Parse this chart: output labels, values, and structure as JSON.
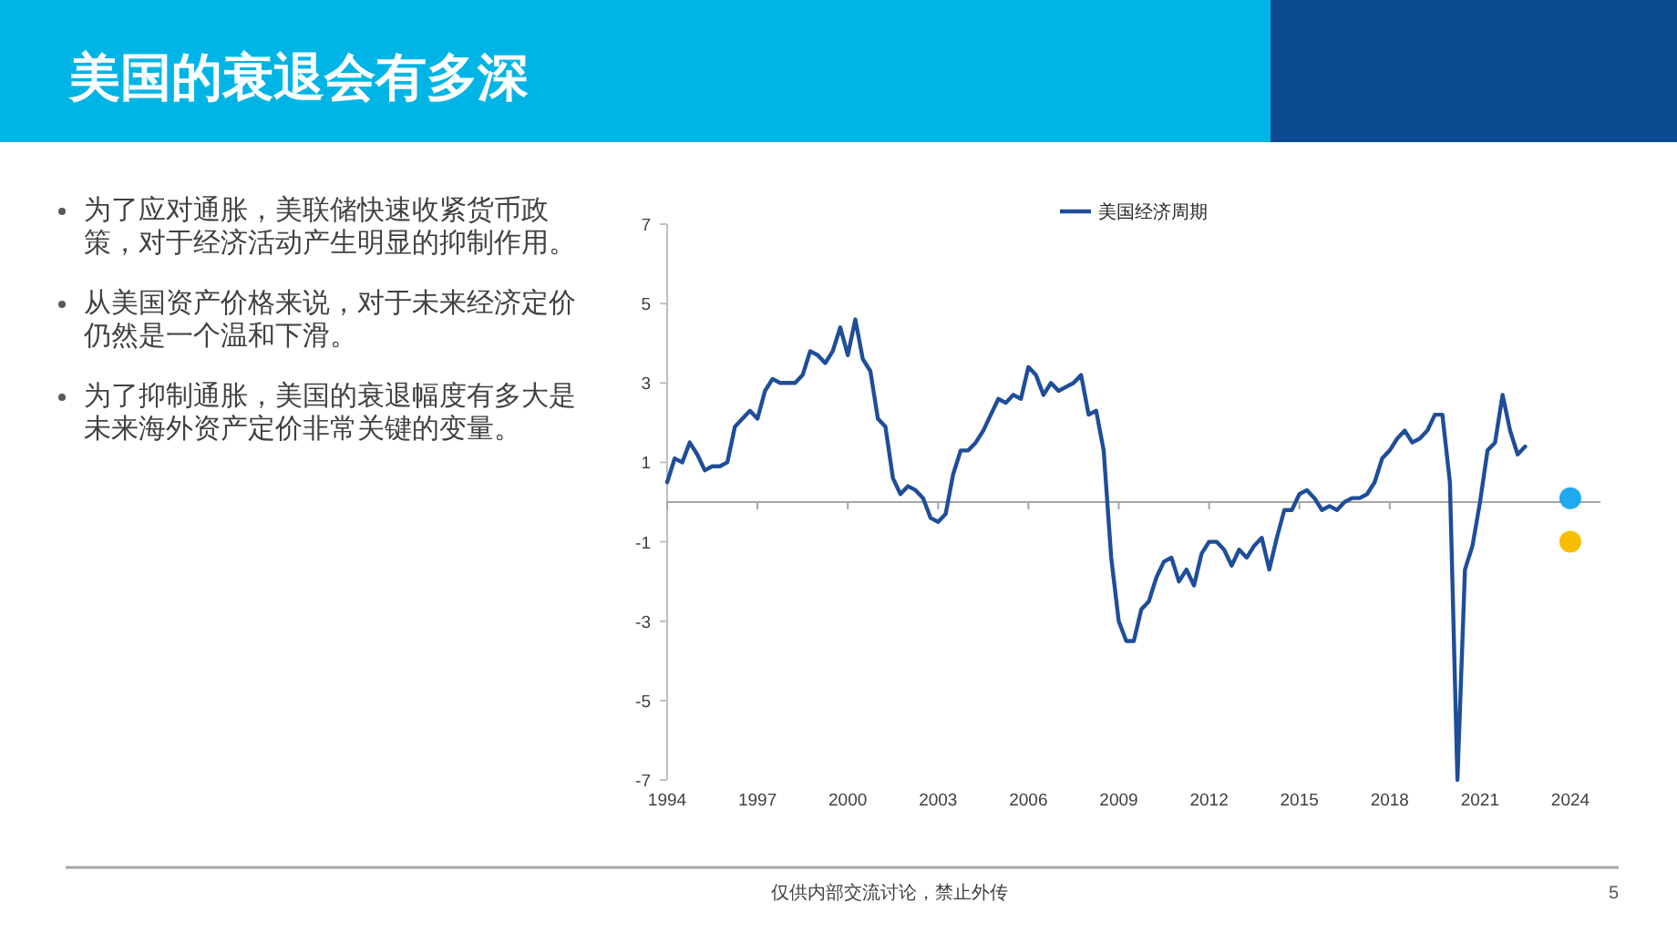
{
  "chart_data": {
    "type": "line",
    "title": "美国的衰退会有多深",
    "annotations": [
      "为了应对通胀，美联储快速收紧货币政策，对于经济活动产生明显的抑制作用。",
      "从美国资产价格来说，对于未来经济定价仍然是一个温和下滑。",
      "为了抑制通胀，美国的衰退幅度有多大是未来海外资产定价非常关键的变量。",
      "仅供内部交流讨论，禁止外传",
      "5"
    ],
    "xlim": [
      1994,
      2025
    ],
    "xticks": [
      1994,
      1997,
      2000,
      2003,
      2006,
      2009,
      2012,
      2015,
      2018,
      2021,
      2024
    ],
    "ylim": [
      -7,
      7
    ],
    "yticks": [
      -7,
      -5,
      -3,
      -1,
      1,
      3,
      5,
      7
    ],
    "legend": "top",
    "series": [
      {
        "name": "美国经济周期",
        "type": "line",
        "color": "#1f4e99",
        "x": [
          1994,
          1994.25,
          1994.5,
          1994.75,
          1995,
          1995.25,
          1995.5,
          1995.75,
          1996,
          1996.25,
          1996.5,
          1996.75,
          1997,
          1997.25,
          1997.5,
          1997.75,
          1998,
          1998.25,
          1998.5,
          1998.75,
          1999,
          1999.25,
          1999.5,
          1999.75,
          2000,
          2000.25,
          2000.5,
          2000.75,
          2001,
          2001.25,
          2001.5,
          2001.75,
          2002,
          2002.25,
          2002.5,
          2002.75,
          2003,
          2003.25,
          2003.5,
          2003.75,
          2004,
          2004.25,
          2004.5,
          2004.75,
          2005,
          2005.25,
          2005.5,
          2005.75,
          2006,
          2006.25,
          2006.5,
          2006.75,
          2007,
          2007.25,
          2007.5,
          2007.75,
          2008,
          2008.25,
          2008.5,
          2008.75,
          2009,
          2009.25,
          2009.5,
          2009.75,
          2010,
          2010.25,
          2010.5,
          2010.75,
          2011,
          2011.25,
          2011.5,
          2011.75,
          2012,
          2012.25,
          2012.5,
          2012.75,
          2013,
          2013.25,
          2013.5,
          2013.75,
          2014,
          2014.25,
          2014.5,
          2014.75,
          2015,
          2015.25,
          2015.5,
          2015.75,
          2016,
          2016.25,
          2016.5,
          2016.75,
          2017,
          2017.25,
          2017.5,
          2017.75,
          2018,
          2018.25,
          2018.5,
          2018.75,
          2019,
          2019.25,
          2019.5,
          2019.75,
          2020,
          2020.25,
          2020.5,
          2020.75,
          2021,
          2021.25,
          2021.5,
          2021.75,
          2022,
          2022.25,
          2022.5
        ],
        "values": [
          0.5,
          1.1,
          1.0,
          1.5,
          1.2,
          0.8,
          0.9,
          0.9,
          1.0,
          1.9,
          2.1,
          2.3,
          2.1,
          2.8,
          3.1,
          3.0,
          3.0,
          3.0,
          3.2,
          3.8,
          3.7,
          3.5,
          3.8,
          4.4,
          3.7,
          4.6,
          3.6,
          3.3,
          2.1,
          1.9,
          0.6,
          0.2,
          0.4,
          0.3,
          0.1,
          -0.4,
          -0.5,
          -0.3,
          0.7,
          1.3,
          1.3,
          1.5,
          1.8,
          2.2,
          2.6,
          2.5,
          2.7,
          2.6,
          3.4,
          3.2,
          2.7,
          3.0,
          2.8,
          2.9,
          3.0,
          3.2,
          2.2,
          2.3,
          1.3,
          -1.4,
          -3.0,
          -3.5,
          -3.5,
          -2.7,
          -2.5,
          -1.9,
          -1.5,
          -1.4,
          -2.0,
          -1.7,
          -2.1,
          -1.3,
          -1.0,
          -1.0,
          -1.2,
          -1.6,
          -1.2,
          -1.4,
          -1.1,
          -0.9,
          -1.7,
          -0.9,
          -0.2,
          -0.2,
          0.2,
          0.3,
          0.1,
          -0.2,
          -0.1,
          -0.2,
          0.0,
          0.1,
          0.1,
          0.2,
          0.5,
          1.1,
          1.3,
          1.6,
          1.8,
          1.5,
          1.6,
          1.8,
          2.2,
          2.2,
          0.5,
          -7.0,
          -1.7,
          -1.1,
          0.0,
          1.3,
          1.5,
          2.7,
          1.8,
          1.2,
          1.4
        ]
      },
      {
        "type": "scatter",
        "marker": "circle",
        "color": "#1fa9ef",
        "x": [
          2024
        ],
        "values": [
          0.1
        ]
      },
      {
        "type": "scatter",
        "marker": "circle",
        "color": "#f7be00",
        "x": [
          2024
        ],
        "values": [
          -1.0
        ]
      }
    ]
  }
}
